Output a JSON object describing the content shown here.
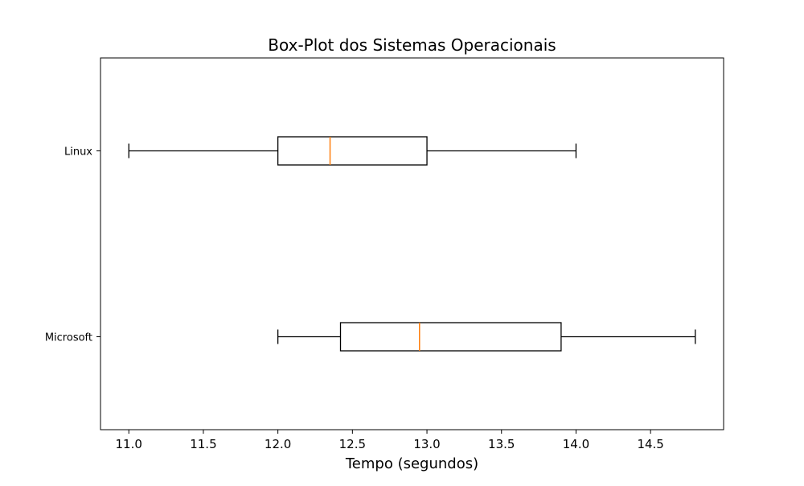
{
  "chart_data": {
    "type": "boxplot",
    "orientation": "horizontal",
    "title": "Box-Plot dos Sistemas Operacionais",
    "xlabel": "Tempo (segundos)",
    "ylabel": "",
    "xlim": [
      10.81,
      14.99
    ],
    "xticks": [
      11.0,
      11.5,
      12.0,
      12.5,
      13.0,
      13.5,
      14.0,
      14.5
    ],
    "xtick_labels": [
      "11.0",
      "11.5",
      "12.0",
      "12.5",
      "13.0",
      "13.5",
      "14.0",
      "14.5"
    ],
    "grid": false,
    "median_color": "#ff7f0e",
    "box_color": "#000000",
    "boxes": [
      {
        "label": "Linux",
        "whisker_low": 11.0,
        "q1": 12.0,
        "median": 12.35,
        "q3": 13.0,
        "whisker_high": 14.0
      },
      {
        "label": "Microsoft",
        "whisker_low": 12.0,
        "q1": 12.42,
        "median": 12.95,
        "q3": 13.9,
        "whisker_high": 14.8
      }
    ]
  }
}
